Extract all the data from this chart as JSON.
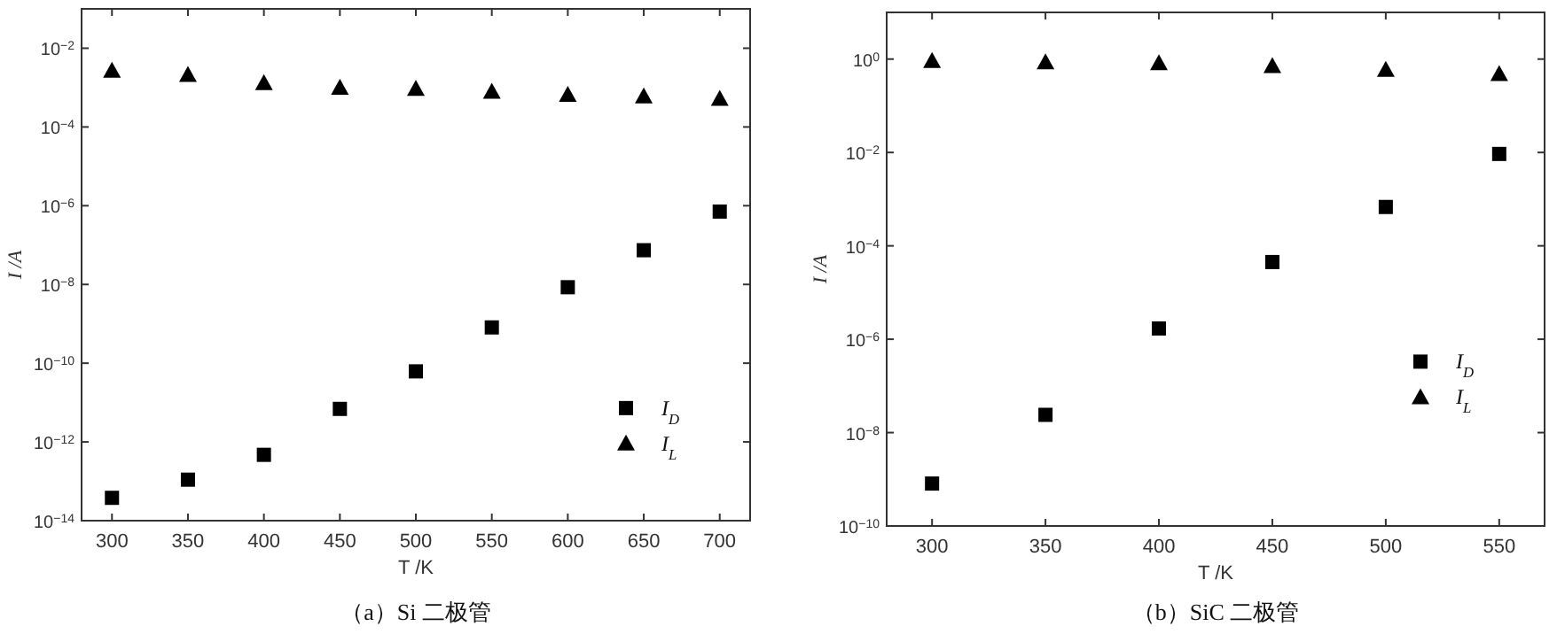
{
  "chart_data": [
    {
      "type": "scatter",
      "title": "（a）Si 二极管",
      "xlabel": "T /K",
      "ylabel": "I /A",
      "log": "y",
      "legend": "bottom right",
      "x": [
        300,
        350,
        400,
        450,
        500,
        550,
        600,
        650,
        700
      ],
      "xlim": [
        280,
        720
      ],
      "xticks": [
        300,
        350,
        400,
        450,
        500,
        550,
        600,
        650,
        700
      ],
      "ylim": [
        1e-14,
        0.1
      ],
      "yticks": [
        {
          "value": 1e-14,
          "label": "10$^{−14}$"
        },
        {
          "value": 1e-12,
          "label": "10$^{−12}$"
        },
        {
          "value": 1e-10,
          "label": "10$^{−10}$"
        },
        {
          "value": 1e-08,
          "label": "10$^{−8}$"
        },
        {
          "value": 1e-06,
          "label": "10$^{−6}$"
        },
        {
          "value": 0.0001,
          "label": "10$^{−4}$"
        },
        {
          "value": 0.01,
          "label": "10$^{−2}$"
        }
      ],
      "series": [
        {
          "name": "I$_{D}$",
          "color": "#000000",
          "marker": "square",
          "values": [
            3.8e-14,
            1.1e-13,
            4.7e-13,
            6.9e-12,
            6.2e-11,
            8.1e-10,
            8.5e-09,
            7.4e-08,
            7.1e-07
          ]
        },
        {
          "name": "I$_{L}$",
          "color": "#000000",
          "marker": "triangle",
          "values": [
            0.0027,
            0.0021,
            0.0013,
            0.001,
            0.00093,
            0.00079,
            0.00066,
            0.0006,
            0.00052
          ]
        }
      ]
    },
    {
      "type": "scatter",
      "title": "（b）SiC 二极管",
      "xlabel": "T /K",
      "ylabel": "I /A",
      "log": "y",
      "legend": "right",
      "x": [
        300,
        350,
        400,
        450,
        500,
        550
      ],
      "xlim": [
        280,
        570
      ],
      "xticks": [
        300,
        350,
        400,
        450,
        500,
        550
      ],
      "ylim": [
        1e-10,
        10
      ],
      "yticks": [
        {
          "value": 1e-10,
          "label": "10$^{−10}$"
        },
        {
          "value": 1e-08,
          "label": "10$^{−8}$"
        },
        {
          "value": 1e-06,
          "label": "10$^{−6}$"
        },
        {
          "value": 0.0001,
          "label": "10$^{−4}$"
        },
        {
          "value": 0.01,
          "label": "10$^{−2}$"
        },
        {
          "value": 1,
          "label": "10$^{0}$"
        }
      ],
      "series": [
        {
          "name": "I$_{D}$",
          "color": "#000000",
          "marker": "square",
          "values": [
            8.1e-10,
            2.4e-08,
            1.7e-06,
            4.5e-05,
            0.00068,
            0.0093
          ]
        },
        {
          "name": "I$_{L}$",
          "color": "#000000",
          "marker": "triangle",
          "values": [
            0.92,
            0.86,
            0.82,
            0.71,
            0.59,
            0.48
          ]
        }
      ]
    }
  ]
}
